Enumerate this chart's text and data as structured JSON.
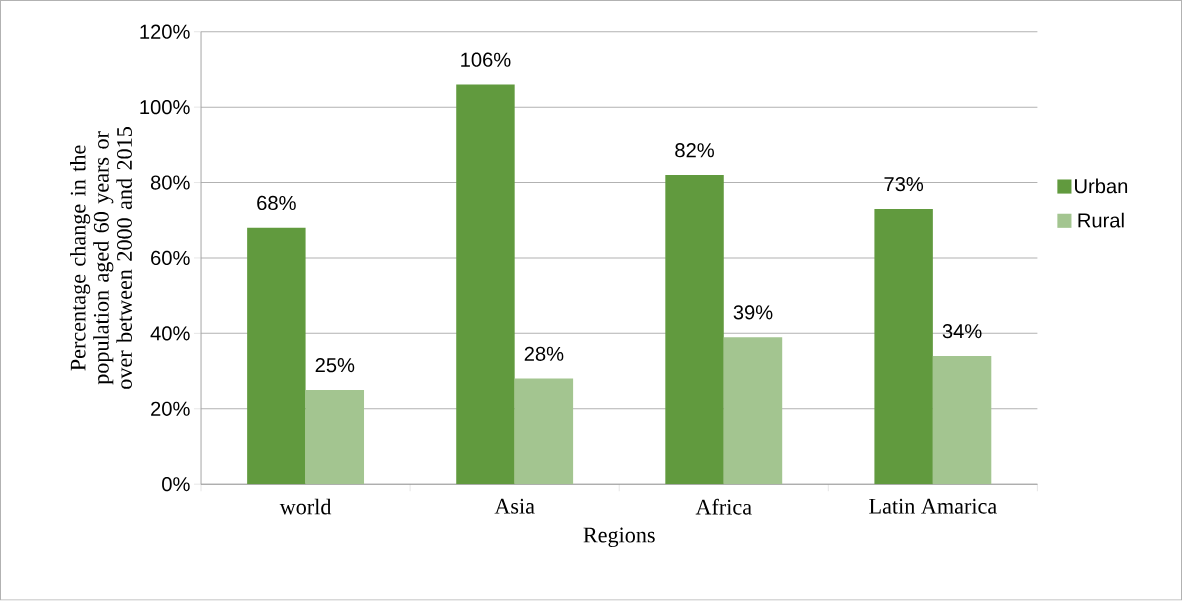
{
  "chart_data": {
    "type": "bar",
    "xlabel": "Regions",
    "ylabel": "Percentage change in the population aged 60 years or over between 2000 and 2015",
    "categories": [
      "world",
      "Asia",
      "Africa",
      "Latin Amarica"
    ],
    "series": [
      {
        "name": "Urban",
        "color": "#619a3e",
        "values": [
          68,
          106,
          82,
          73
        ],
        "value_labels": [
          "68%",
          "106%",
          "82%",
          "73%"
        ]
      },
      {
        "name": "Rural",
        "color": "#a3c590",
        "values": [
          25,
          28,
          39,
          34
        ],
        "value_labels": [
          "25%",
          "28%",
          "39%",
          "34%"
        ]
      }
    ],
    "ylim": [
      0,
      120
    ],
    "yticks": [
      {
        "value": 0,
        "label": "0%"
      },
      {
        "value": 20,
        "label": "20%"
      },
      {
        "value": 40,
        "label": "40%"
      },
      {
        "value": 60,
        "label": "60%"
      },
      {
        "value": 80,
        "label": "80%"
      },
      {
        "value": 100,
        "label": "100%"
      },
      {
        "value": 120,
        "label": "120%"
      }
    ],
    "grid": "y",
    "legend": "right"
  }
}
